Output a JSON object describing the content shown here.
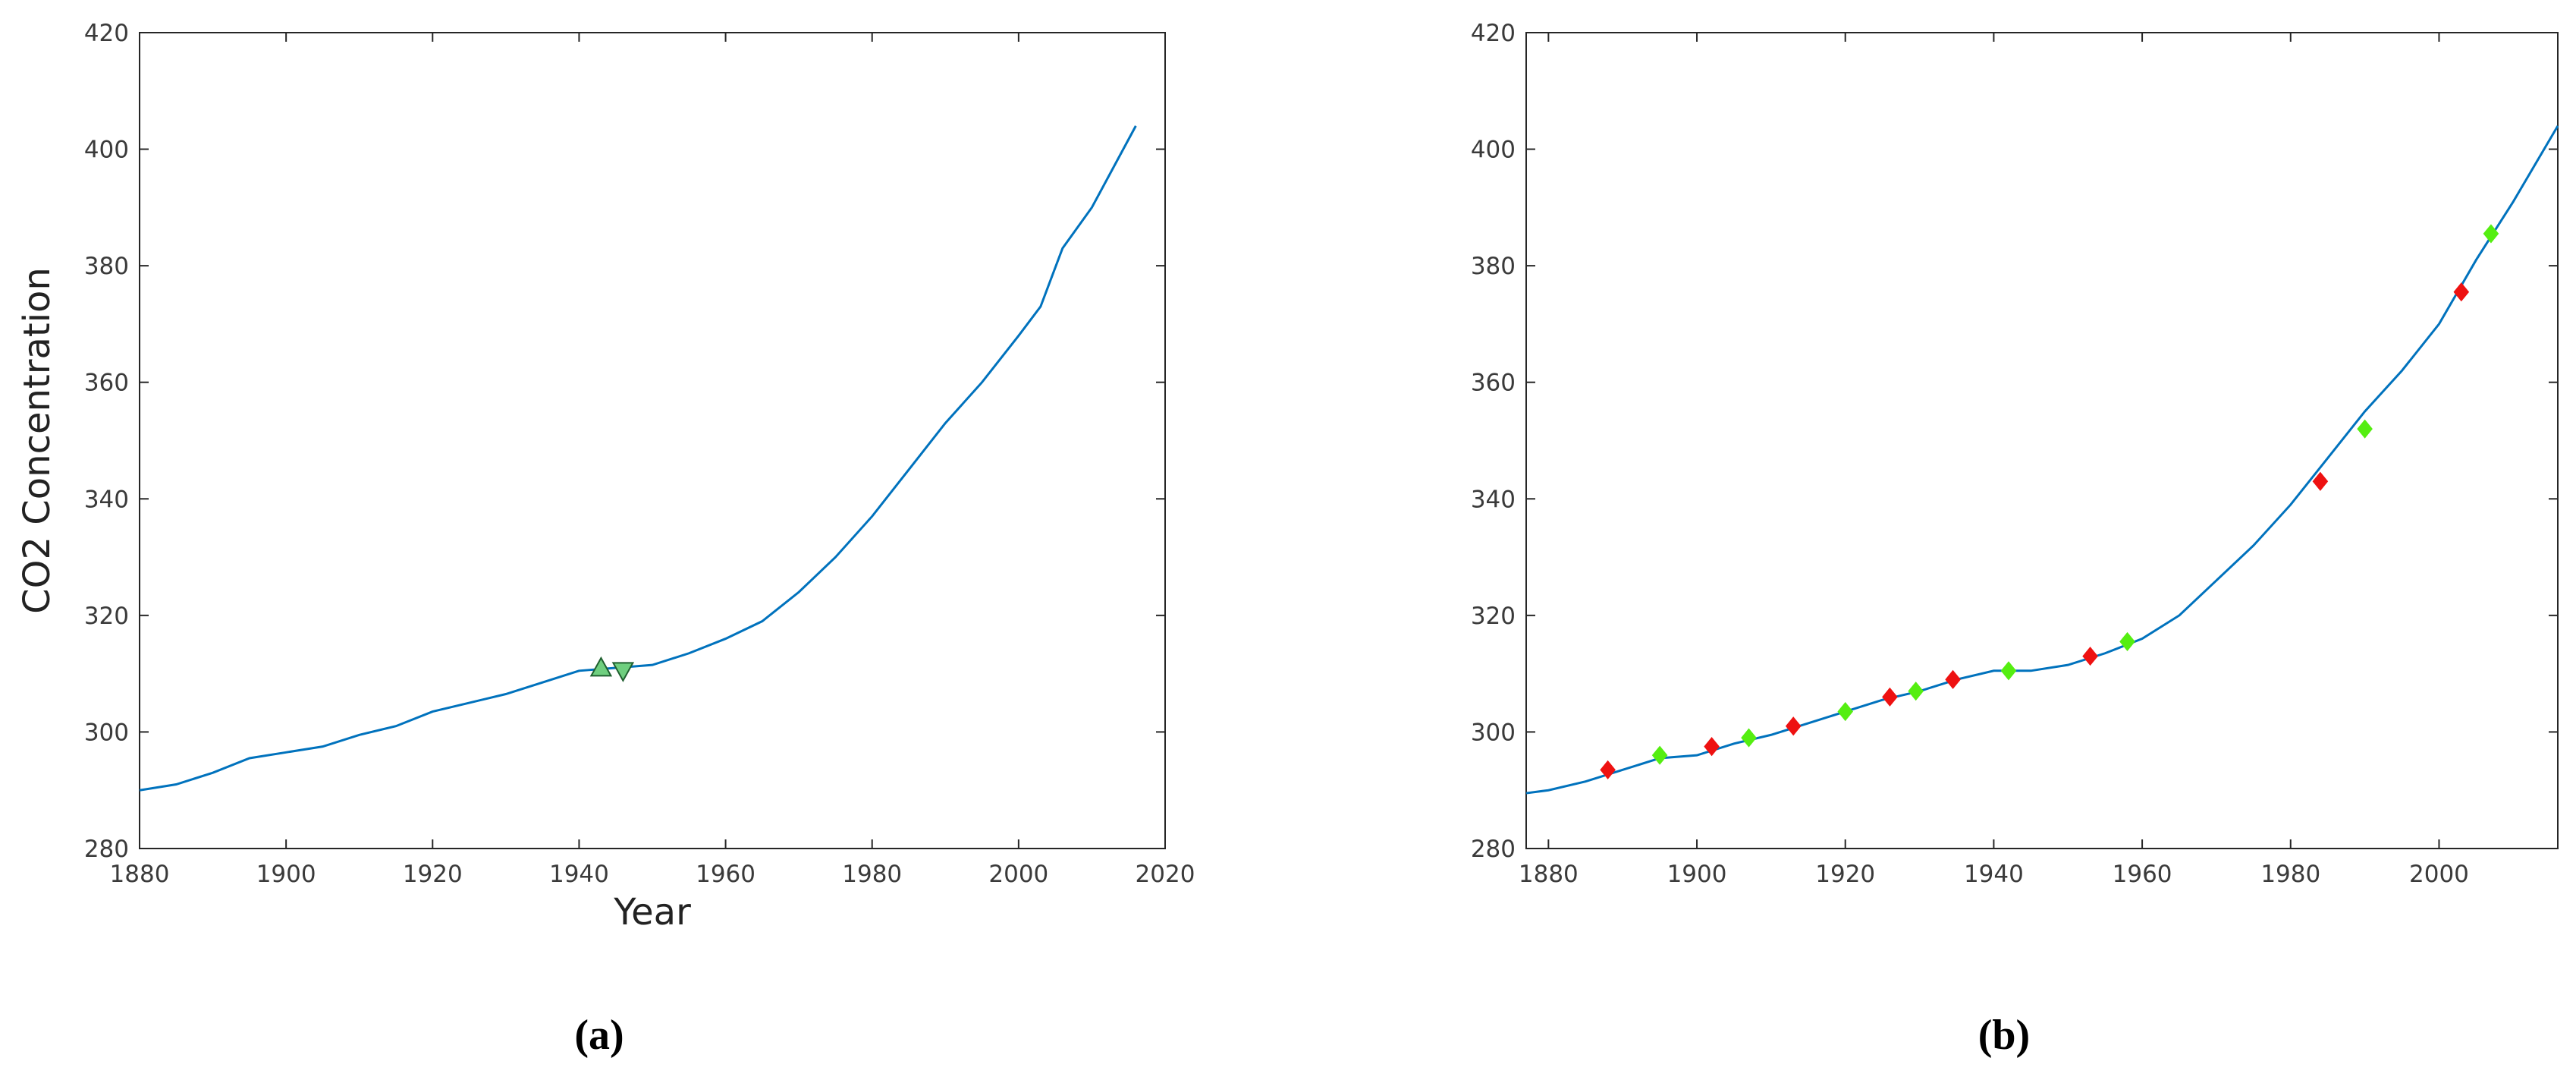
{
  "chart_data": [
    {
      "type": "line",
      "xlabel": "Year",
      "ylabel": "CO2 Concentration",
      "caption": "(a)",
      "xlim": [
        1880,
        2020
      ],
      "xticks": [
        1880,
        1900,
        1920,
        1940,
        1960,
        1980,
        2000,
        2020
      ],
      "ylim": [
        280,
        420
      ],
      "yticks": [
        280,
        300,
        320,
        340,
        360,
        380,
        400,
        420
      ],
      "series": [
        {
          "marker": "line",
          "color": "#0072bd",
          "x": [
            1880,
            1885,
            1890,
            1895,
            1900,
            1905,
            1910,
            1915,
            1920,
            1925,
            1930,
            1935,
            1940,
            1945,
            1950,
            1955,
            1960,
            1965,
            1970,
            1975,
            1980,
            1985,
            1990,
            1995,
            2000,
            2003,
            2006,
            2010,
            2016
          ],
          "values": [
            290,
            291,
            293,
            295.5,
            296.5,
            297.5,
            299.5,
            301,
            303.5,
            305,
            306.5,
            308.5,
            310.5,
            311,
            311.5,
            313.5,
            316,
            319,
            324,
            330,
            337,
            345,
            353,
            360,
            368,
            373,
            383,
            390,
            404
          ]
        },
        {
          "marker": "triangle-up",
          "color": "#6fcf7f",
          "x": [
            1943
          ],
          "values": [
            311
          ]
        },
        {
          "marker": "triangle-down",
          "color": "#6fcf7f",
          "x": [
            1946
          ],
          "values": [
            310.5
          ]
        }
      ]
    },
    {
      "type": "line",
      "caption": "(b)",
      "xlim": [
        1877,
        2016
      ],
      "xticks": [
        1880,
        1900,
        1920,
        1940,
        1960,
        1980,
        2000
      ],
      "ylim": [
        280,
        420
      ],
      "yticks": [
        280,
        300,
        320,
        340,
        360,
        380,
        400,
        420
      ],
      "series": [
        {
          "marker": "line",
          "color": "#0072bd",
          "x": [
            1877,
            1880,
            1885,
            1890,
            1895,
            1900,
            1905,
            1910,
            1915,
            1920,
            1925,
            1930,
            1935,
            1940,
            1945,
            1950,
            1955,
            1960,
            1965,
            1970,
            1975,
            1980,
            1985,
            1990,
            1995,
            2000,
            2005,
            2010,
            2016
          ],
          "values": [
            289.5,
            290,
            291.5,
            293.5,
            295.5,
            296,
            298,
            299.5,
            301.5,
            303.5,
            305.5,
            307,
            309,
            310.5,
            310.5,
            311.5,
            313.5,
            316,
            320,
            326,
            332,
            339,
            347,
            355,
            362,
            370,
            381,
            391,
            404
          ]
        },
        {
          "marker": "diamond",
          "color": "#ee1111",
          "x": [
            1888,
            1902,
            1913,
            1926,
            1934.5,
            1953,
            1984,
            2003
          ],
          "values": [
            293.5,
            297.5,
            301,
            306,
            309,
            313,
            343,
            375.5
          ]
        },
        {
          "marker": "diamond",
          "color": "#55ee11",
          "x": [
            1895,
            1907,
            1920,
            1929.5,
            1942,
            1958,
            1990,
            2007
          ],
          "values": [
            296,
            299,
            303.5,
            307,
            310.5,
            315.5,
            352,
            385.5
          ]
        }
      ]
    }
  ]
}
